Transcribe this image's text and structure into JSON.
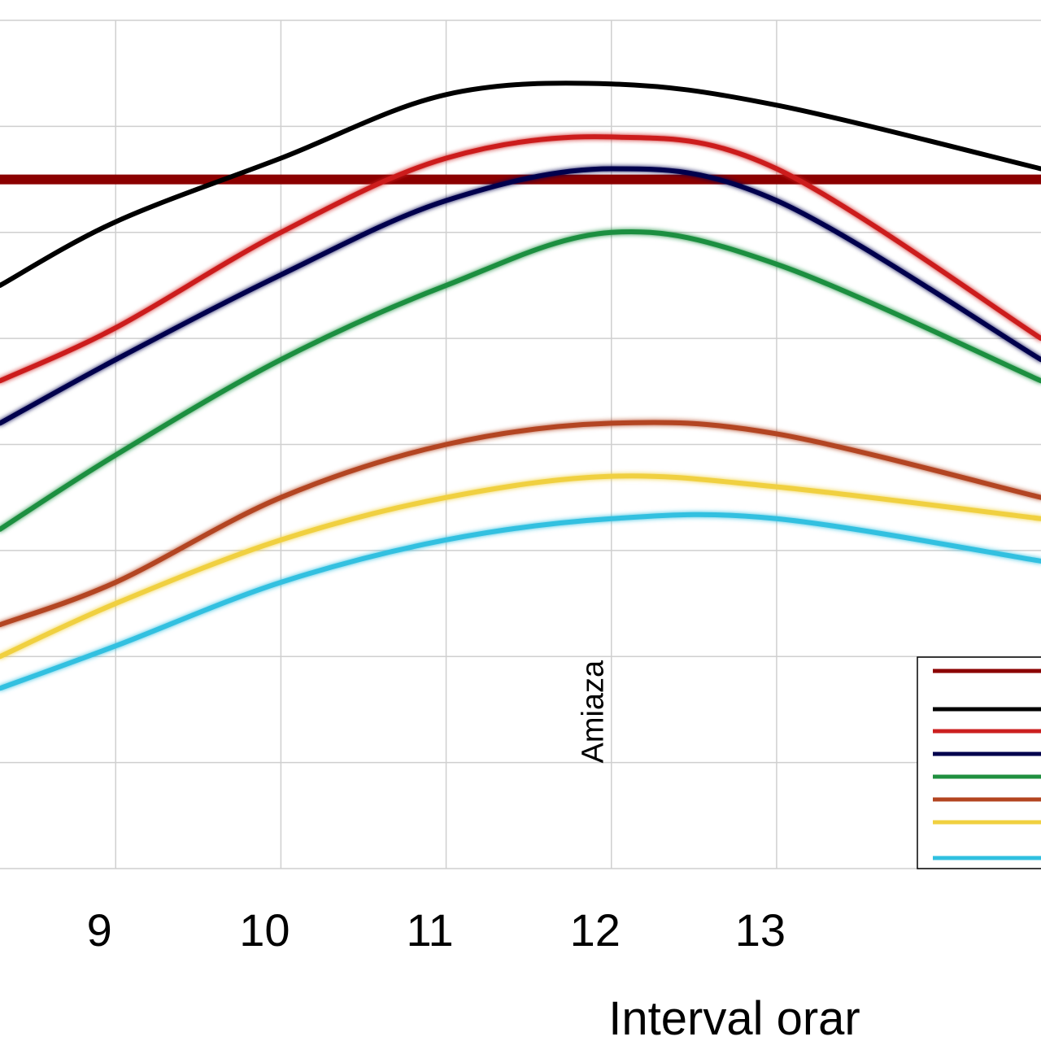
{
  "chart_data": {
    "type": "line",
    "xlabel": "Interval orar",
    "ylabel": "",
    "title": "",
    "xlim": [
      8.3,
      14.6
    ],
    "ylim": [
      0,
      8
    ],
    "x_ticks": [
      "9",
      "10",
      "11",
      "12",
      "13"
    ],
    "x_tick_values": [
      9,
      10,
      11,
      12,
      13
    ],
    "grid": true,
    "legend_position": "bottom-right",
    "annotation": {
      "text": "Amiaza",
      "x": 12,
      "y": 1.3,
      "orientation": "vertical"
    },
    "series": [
      {
        "color": "#8b0000",
        "stroke": 12,
        "points": [
          [
            8.3,
            6.5
          ],
          [
            14.6,
            6.5
          ]
        ]
      },
      {
        "color": "#000000",
        "stroke": 6,
        "points": [
          [
            8.3,
            5.5
          ],
          [
            9,
            6.1
          ],
          [
            10,
            6.7
          ],
          [
            11,
            7.3
          ],
          [
            12,
            7.4
          ],
          [
            13,
            7.2
          ],
          [
            14.6,
            6.6
          ]
        ]
      },
      {
        "color": "#cc1f1f",
        "stroke": 6,
        "points": [
          [
            8.3,
            4.6
          ],
          [
            9,
            5.1
          ],
          [
            10,
            6.0
          ],
          [
            11,
            6.7
          ],
          [
            12,
            6.9
          ],
          [
            13,
            6.6
          ],
          [
            14.6,
            5.0
          ]
        ]
      },
      {
        "color": "#00004d",
        "stroke": 6,
        "points": [
          [
            8.3,
            4.2
          ],
          [
            9,
            4.8
          ],
          [
            10,
            5.6
          ],
          [
            11,
            6.3
          ],
          [
            12,
            6.6
          ],
          [
            13,
            6.3
          ],
          [
            14.6,
            4.8
          ]
        ]
      },
      {
        "color": "#1f8f3f",
        "stroke": 6,
        "points": [
          [
            8.3,
            3.2
          ],
          [
            9,
            3.9
          ],
          [
            10,
            4.8
          ],
          [
            11,
            5.5
          ],
          [
            12,
            6.0
          ],
          [
            13,
            5.7
          ],
          [
            14.6,
            4.6
          ]
        ]
      },
      {
        "color": "#b34520",
        "stroke": 6,
        "points": [
          [
            8.3,
            2.3
          ],
          [
            9,
            2.7
          ],
          [
            10,
            3.5
          ],
          [
            11,
            4.0
          ],
          [
            12,
            4.2
          ],
          [
            13,
            4.1
          ],
          [
            14.6,
            3.5
          ]
        ]
      },
      {
        "color": "#f0d040",
        "stroke": 6,
        "points": [
          [
            8.3,
            2.0
          ],
          [
            9,
            2.5
          ],
          [
            10,
            3.1
          ],
          [
            11,
            3.5
          ],
          [
            12,
            3.7
          ],
          [
            13,
            3.6
          ],
          [
            14.6,
            3.3
          ]
        ]
      },
      {
        "color": "#30c0e0",
        "stroke": 6,
        "points": [
          [
            8.3,
            1.7
          ],
          [
            9,
            2.1
          ],
          [
            10,
            2.7
          ],
          [
            11,
            3.1
          ],
          [
            12,
            3.3
          ],
          [
            13,
            3.3
          ],
          [
            14.6,
            2.9
          ]
        ]
      }
    ]
  }
}
